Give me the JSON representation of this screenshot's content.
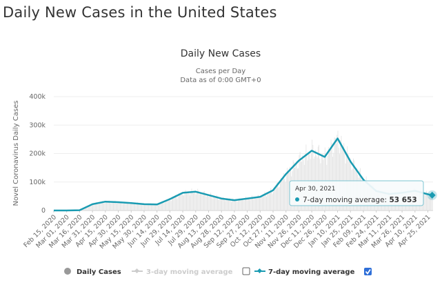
{
  "page": {
    "title": "Daily New Cases in the United States"
  },
  "chart_data": {
    "type": "line",
    "title": "Daily New Cases",
    "subtitle_lines": [
      "Cases per Day",
      "Data as of 0:00 GMT+0"
    ],
    "xlabel": "",
    "ylabel": "Novel Coronavirus Daily Cases",
    "ylim": [
      0,
      400000
    ],
    "y_ticks": [
      0,
      100000,
      200000,
      300000,
      400000
    ],
    "y_tick_labels": [
      "0",
      "100k",
      "200k",
      "300k",
      "400k"
    ],
    "x_tick_labels": [
      "Feb 15, 2020",
      "Mar 01, 2020",
      "Mar 16, 2020",
      "Mar 31, 2020",
      "Apr 15, 2020",
      "Apr 30, 2020",
      "May 15, 2020",
      "May 30, 2020",
      "Jun 14, 2020",
      "Jun 29, 2020",
      "Jul 14, 2020",
      "Jul 29, 2020",
      "Aug 13, 2020",
      "Aug 28, 2020",
      "Sep 12, 2020",
      "Sep 27, 2020",
      "Oct 12, 2020",
      "Oct 27, 2020",
      "Nov 11, 2020",
      "Nov 26, 2020",
      "Dec 11, 2020",
      "Dec 26, 2020",
      "Jan 10, 2021",
      "Jan 25, 2021",
      "Feb 09, 2021",
      "Feb 24, 2021",
      "Mar 11, 2021",
      "Mar 26, 2021",
      "Apr 10, 2021",
      "Apr 25, 2021"
    ],
    "grid": true,
    "legend_position": "bottom",
    "series": [
      {
        "name": "7-day moving average",
        "color": "#1a9bb2",
        "visible": true,
        "x": [
          "Feb 15, 2020",
          "Mar 01, 2020",
          "Mar 16, 2020",
          "Mar 31, 2020",
          "Apr 15, 2020",
          "Apr 30, 2020",
          "May 15, 2020",
          "May 30, 2020",
          "Jun 14, 2020",
          "Jun 29, 2020",
          "Jul 14, 2020",
          "Jul 29, 2020",
          "Aug 13, 2020",
          "Aug 28, 2020",
          "Sep 12, 2020",
          "Sep 27, 2020",
          "Oct 12, 2020",
          "Oct 27, 2020",
          "Nov 11, 2020",
          "Nov 26, 2020",
          "Dec 11, 2020",
          "Dec 26, 2020",
          "Jan 10, 2021",
          "Jan 25, 2021",
          "Feb 09, 2021",
          "Feb 24, 2021",
          "Mar 11, 2021",
          "Mar 26, 2021",
          "Apr 10, 2021",
          "Apr 25, 2021",
          "Apr 30, 2021"
        ],
        "values": [
          0,
          100,
          1000,
          22000,
          31000,
          29000,
          26000,
          22000,
          21000,
          40000,
          62000,
          66000,
          54000,
          42000,
          36000,
          42000,
          48000,
          71000,
          128000,
          175000,
          210000,
          188000,
          253000,
          172000,
          108000,
          68000,
          58000,
          62000,
          69000,
          57000,
          53653
        ]
      },
      {
        "name": "Daily Cases",
        "color": "#dddddd",
        "visible": true,
        "note": "bars approximately follow the 7-day average"
      },
      {
        "name": "3-day moving average",
        "color": "#cccccc",
        "visible": false
      }
    ],
    "tooltip": {
      "date": "Apr 30, 2021",
      "series": "7-day moving average",
      "label": "7-day moving average:",
      "value": "53 653"
    },
    "legend": [
      {
        "label": "Daily Cases",
        "color": "#999999",
        "active": true,
        "checkbox": null
      },
      {
        "label": "3-day moving average",
        "color": "#cccccc",
        "active": false,
        "checkbox": false
      },
      {
        "label": "7-day moving average",
        "color": "#1a9bb2",
        "active": true,
        "checkbox": true
      }
    ]
  }
}
